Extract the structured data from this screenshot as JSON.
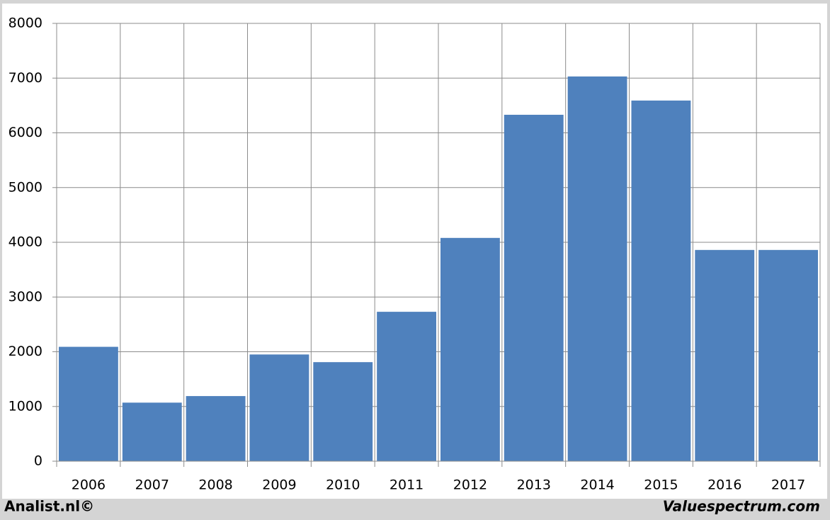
{
  "chart_data": {
    "type": "bar",
    "categories": [
      "2006",
      "2007",
      "2008",
      "2009",
      "2010",
      "2011",
      "2012",
      "2013",
      "2014",
      "2015",
      "2016",
      "2017"
    ],
    "values": [
      2090,
      1070,
      1190,
      1950,
      1810,
      2730,
      4080,
      6330,
      7030,
      6590,
      3860,
      3860
    ],
    "color": "#4f81bd",
    "ylim": [
      0,
      8000
    ],
    "yticks": [
      0,
      1000,
      2000,
      3000,
      4000,
      5000,
      6000,
      7000,
      8000
    ],
    "grid": true,
    "credits": [
      "Analist.nl©",
      "Valuespectrum.com"
    ]
  }
}
